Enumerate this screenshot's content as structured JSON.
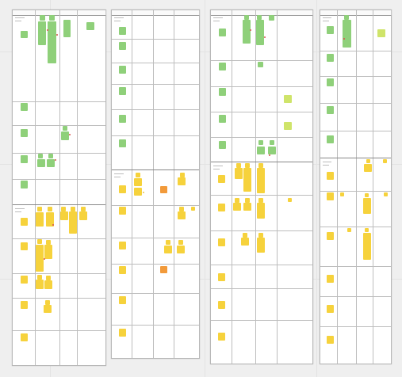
{
  "canvas": {
    "background": "#efefef",
    "board_background": "#ffffff",
    "colors": {
      "green": "#8fd07a",
      "lime": "#cfe46a",
      "yellow": "#f6d23c",
      "orange": "#f29a3a"
    }
  },
  "boards": [
    {
      "name": "board-1",
      "column_headers": [
        "",
        "",
        "",
        ""
      ],
      "lane_labels": [
        "",
        ""
      ]
    },
    {
      "name": "board-2",
      "column_headers": [
        "",
        "",
        "",
        ""
      ],
      "lane_labels": [
        "",
        ""
      ]
    },
    {
      "name": "board-3",
      "column_headers": [
        "",
        "",
        "",
        ""
      ],
      "lane_labels": [
        "",
        ""
      ]
    },
    {
      "name": "board-4",
      "column_headers": [
        "",
        "",
        "",
        ""
      ],
      "lane_labels": [
        "",
        ""
      ]
    }
  ]
}
